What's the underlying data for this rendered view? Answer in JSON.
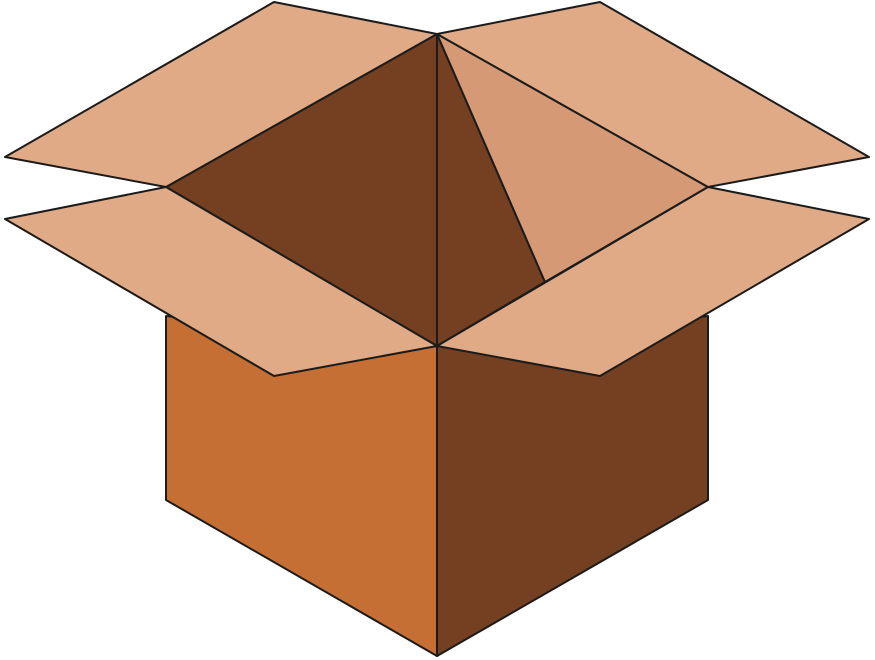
{
  "illustration": {
    "subject": "open-cardboard-box-icon",
    "colors": {
      "front_face": "#c56f34",
      "side_face": "#744021",
      "inner_dark": "#744021",
      "inner_light": "#d59a75",
      "flap": "#e0aa86",
      "outline": "#1b1b1b",
      "background": "#ffffff"
    }
  }
}
